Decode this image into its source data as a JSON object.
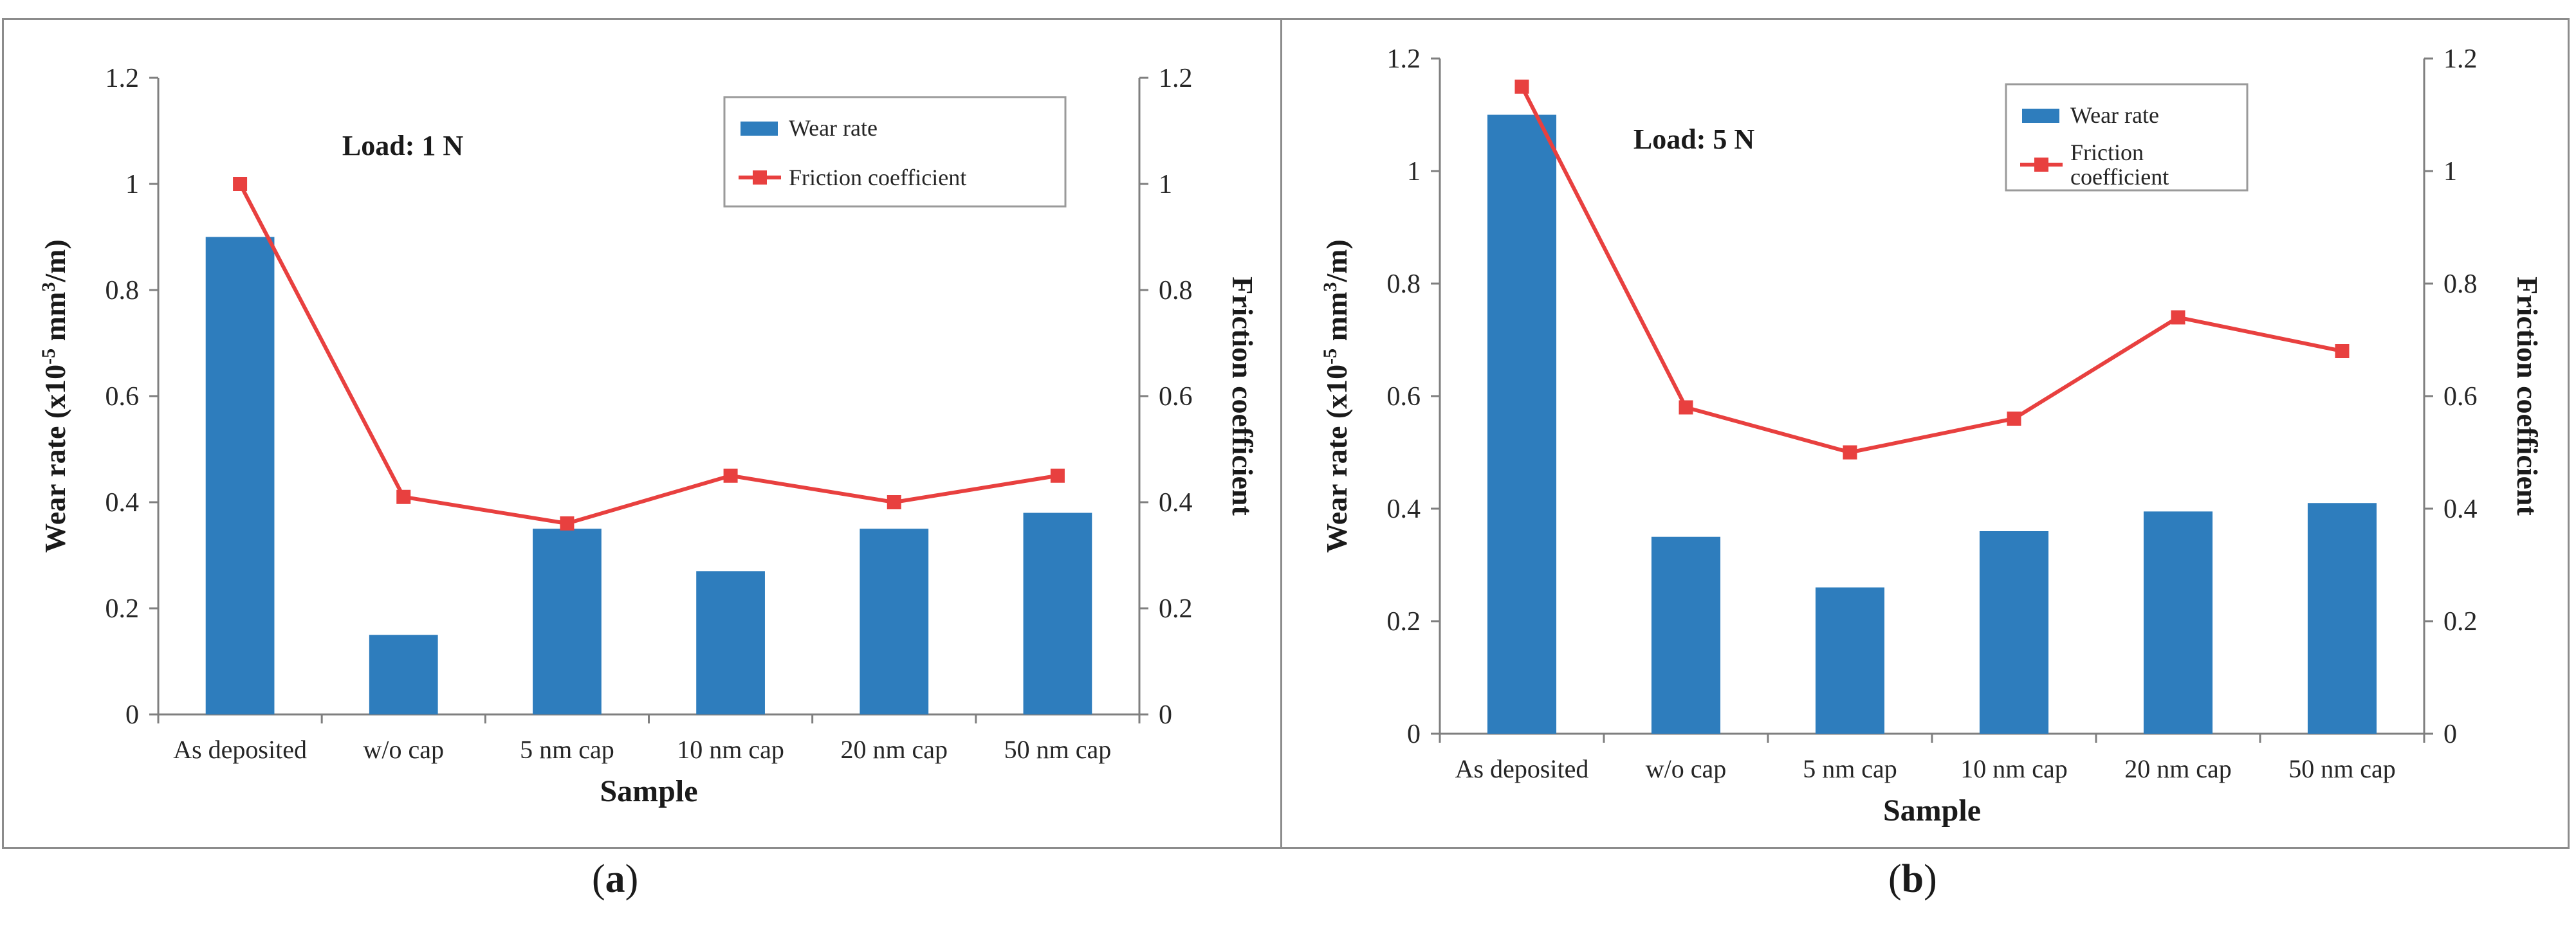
{
  "chart_data": [
    {
      "type": "bar",
      "panel": "a",
      "annotation": "Load: 1 N",
      "categories": [
        "As deposited",
        "w/o cap",
        "5 nm cap",
        "10 nm cap",
        "20 nm cap",
        "50 nm cap"
      ],
      "series": [
        {
          "name": "Wear rate",
          "kind": "bar",
          "axis": "left",
          "color": "#2e7dbd",
          "values": [
            0.9,
            0.15,
            0.35,
            0.27,
            0.35,
            0.38
          ]
        },
        {
          "name": "Friction coefficient",
          "kind": "line",
          "axis": "right",
          "color": "#e8403f",
          "marker": "square",
          "values": [
            1.0,
            0.41,
            0.36,
            0.45,
            0.4,
            0.45
          ]
        }
      ],
      "xlabel": "Sample",
      "ylabel_left": "Wear rate (x10-5 mm3/m)",
      "ylabel_right": "Friction coefficient",
      "ylim_left": [
        0,
        1.2
      ],
      "ylim_right": [
        0,
        1.2
      ],
      "yticks": [
        "0",
        "0.2",
        "0.4",
        "0.6",
        "0.8",
        "1",
        "1.2"
      ],
      "grid": false,
      "legend_position": "top-right"
    },
    {
      "type": "bar",
      "panel": "b",
      "annotation": "Load: 5 N",
      "categories": [
        "As deposited",
        "w/o cap",
        "5 nm cap",
        "10 nm cap",
        "20 nm cap",
        "50 nm cap"
      ],
      "series": [
        {
          "name": "Wear rate",
          "kind": "bar",
          "axis": "left",
          "color": "#2e7dbd",
          "values": [
            1.1,
            0.35,
            0.26,
            0.36,
            0.395,
            0.41
          ]
        },
        {
          "name": "Friction coefficient",
          "kind": "line",
          "axis": "right",
          "color": "#e8403f",
          "marker": "square",
          "values": [
            1.15,
            0.58,
            0.5,
            0.56,
            0.74,
            0.68
          ]
        }
      ],
      "xlabel": "Sample",
      "ylabel_left": "Wear rate (x10-5 mm3/m)",
      "ylabel_right": "Friction coefficient",
      "ylim_left": [
        0,
        1.2
      ],
      "ylim_right": [
        0,
        1.2
      ],
      "yticks": [
        "0",
        "0.2",
        "0.4",
        "0.6",
        "0.8",
        "1",
        "1.2"
      ],
      "grid": false,
      "legend_position": "top-right"
    }
  ],
  "captions": {
    "a": "a",
    "b": "b"
  }
}
